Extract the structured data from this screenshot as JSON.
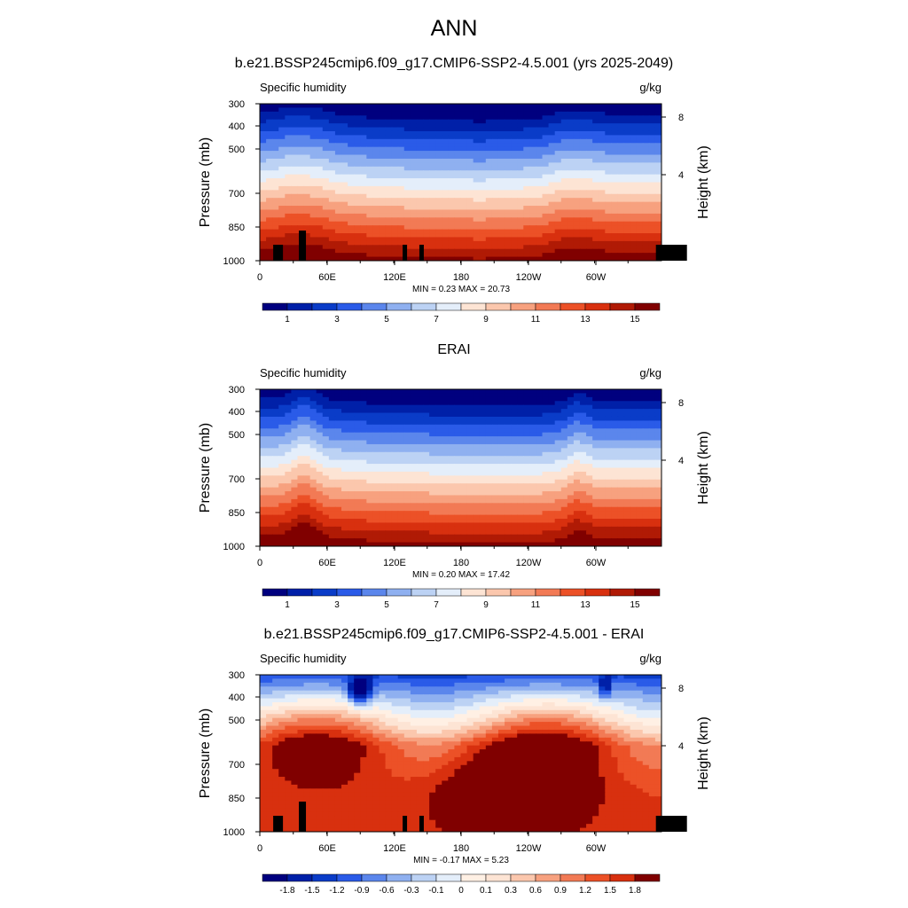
{
  "page": {
    "title": "ANN"
  },
  "colorbars": {
    "absolute": {
      "colors": [
        "#00007f",
        "#0020a8",
        "#0a3cc8",
        "#2a5be8",
        "#5b86ec",
        "#8fb0f0",
        "#bcd2f4",
        "#e4eefa",
        "#fde4d4",
        "#fbc7ad",
        "#f7a17f",
        "#f27a55",
        "#ec5127",
        "#d8300f",
        "#b01a05",
        "#800000"
      ],
      "labels": [
        "1",
        "3",
        "5",
        "7",
        "9",
        "11",
        "13",
        "15"
      ]
    },
    "difference": {
      "colors": [
        "#00007f",
        "#0020a8",
        "#0a3cc8",
        "#2a5be8",
        "#5b86ec",
        "#8fb0f0",
        "#bcd2f4",
        "#e4eefa",
        "#fff0e4",
        "#fde4d4",
        "#fbc7ad",
        "#f7a17f",
        "#f27a55",
        "#ec5127",
        "#d8300f",
        "#800000"
      ],
      "labels": [
        "-1.8",
        "-1.5",
        "-1.2",
        "-0.9",
        "-0.6",
        "-0.3",
        "-0.1",
        "0",
        "0.1",
        "0.3",
        "0.6",
        "0.9",
        "1.2",
        "1.5",
        "1.8"
      ]
    }
  },
  "chart_data": [
    {
      "type": "heatmap",
      "title": "b.e21.BSSP245cmip6.f09_g17.CMIP6-SSP2-4.5.001 (yrs 2025-2049)",
      "left_label": "Specific humidity",
      "units": "g/kg",
      "ylabel": "Pressure (mb)",
      "ylabel_right": "Height (km)",
      "x_ticks": [
        "0",
        "60E",
        "120E",
        "180",
        "120W",
        "60W"
      ],
      "y_ticks": [
        "300",
        "400",
        "500",
        "700",
        "850",
        "1000"
      ],
      "y_right_ticks": [
        "8",
        "4"
      ],
      "stats": "MIN =   0.23  MAX =  20.73",
      "min": 0.23,
      "max": 20.73,
      "colorbar": "absolute"
    },
    {
      "type": "heatmap",
      "title": "ERAI",
      "left_label": "Specific humidity",
      "units": "g/kg",
      "ylabel": "Pressure (mb)",
      "ylabel_right": "Height (km)",
      "x_ticks": [
        "0",
        "60E",
        "120E",
        "180",
        "120W",
        "60W"
      ],
      "y_ticks": [
        "300",
        "400",
        "500",
        "700",
        "850",
        "1000"
      ],
      "y_right_ticks": [
        "8",
        "4"
      ],
      "stats": "MIN =   0.20  MAX =  17.42",
      "min": 0.2,
      "max": 17.42,
      "colorbar": "absolute"
    },
    {
      "type": "heatmap",
      "title": "b.e21.BSSP245cmip6.f09_g17.CMIP6-SSP2-4.5.001 - ERAI",
      "left_label": "Specific humidity",
      "units": "g/kg",
      "ylabel": "Pressure (mb)",
      "ylabel_right": "Height (km)",
      "x_ticks": [
        "0",
        "60E",
        "120E",
        "180",
        "120W",
        "60W"
      ],
      "y_ticks": [
        "300",
        "400",
        "500",
        "700",
        "850",
        "1000"
      ],
      "y_right_ticks": [
        "8",
        "4"
      ],
      "stats": "MIN =  -0.17  MAX =   5.23",
      "min": -0.17,
      "max": 5.23,
      "colorbar": "difference"
    }
  ]
}
